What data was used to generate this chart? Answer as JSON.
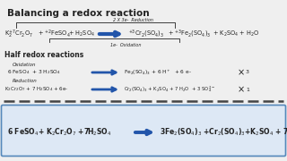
{
  "title": "Balancing a redox reaction",
  "bg_color": "#efefef",
  "box_bg": "#dde8f5",
  "box_border": "#5588bb",
  "arrow_color": "#2255aa",
  "text_color": "#222222",
  "dashed_color": "#444444",
  "title_fontsize": 7.5,
  "main_eq": {
    "reduction_label": "2 X 3e-  Reduction",
    "oxidation_label": "1e-  Oxidation"
  },
  "half_reactions": {
    "header": "Half redox reactions",
    "oxidation_label": "Oxidation",
    "reduction_label": "Reduction"
  }
}
